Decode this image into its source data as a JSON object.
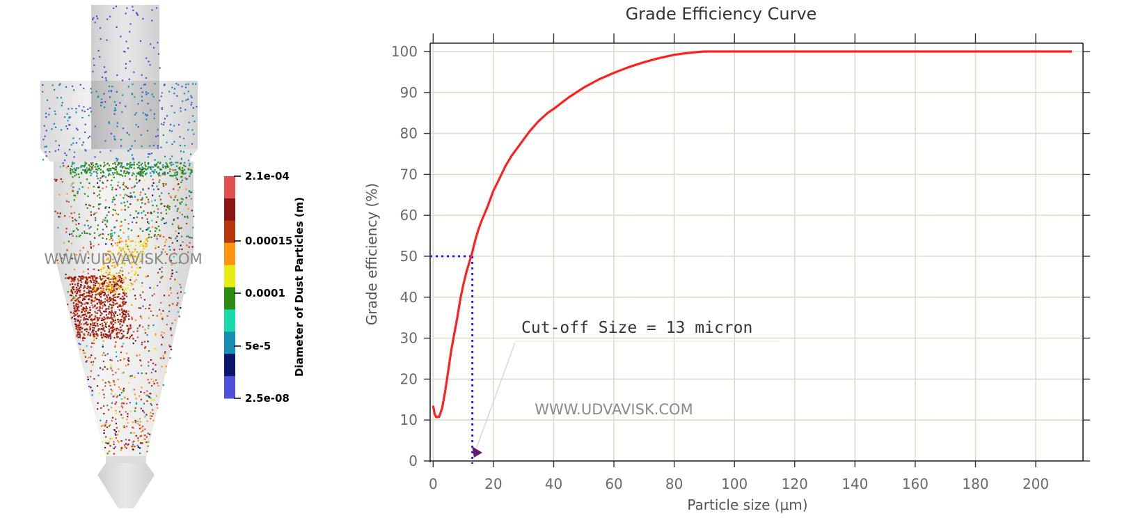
{
  "colorbar": {
    "title": "Diameter of Dust Particles (m)",
    "tick_labels": [
      "2.1e-04",
      "0.00015",
      "0.0001",
      "5e-5",
      "2.5e-08"
    ],
    "colors": [
      "#e0504e",
      "#8b1414",
      "#b8360c",
      "#ff9412",
      "#e6ec12",
      "#2b8c14",
      "#16dba8",
      "#1590b2",
      "#0e156e",
      "#5050dc"
    ]
  },
  "watermark": "WWW.UDVAVISK.COM",
  "chart_data": {
    "type": "line",
    "title": "Grade Efficiency Curve",
    "xlabel": "Particle size (μm)",
    "ylabel": "Grade efficiency (%)",
    "xlim": [
      -1,
      212
    ],
    "ylim": [
      0,
      100
    ],
    "xticks": [
      0,
      20,
      40,
      60,
      80,
      100,
      120,
      140,
      160,
      180,
      200
    ],
    "yticks": [
      0,
      10,
      20,
      30,
      40,
      50,
      60,
      70,
      80,
      90,
      100
    ],
    "grid": true,
    "line_color": "#ff2020",
    "series": [
      {
        "x": [
          0,
          0.5,
          1,
          2,
          3,
          4,
          5,
          6,
          7,
          8,
          9,
          10,
          11,
          12,
          13,
          14,
          15,
          16,
          18,
          20,
          22,
          24,
          26,
          28,
          30,
          32,
          35,
          38,
          40,
          45,
          50,
          55,
          60,
          65,
          70,
          75,
          80,
          85,
          88,
          90,
          100,
          120,
          140,
          160,
          180,
          200,
          212
        ],
        "y": [
          13.5,
          11.5,
          10.7,
          10.8,
          13,
          17,
          22,
          27,
          31,
          35,
          39.5,
          43,
          46,
          48.5,
          51,
          54,
          56.5,
          58.5,
          62,
          66,
          69,
          72,
          74.5,
          76.5,
          78.5,
          80.5,
          83,
          85,
          86,
          88.8,
          91.2,
          93.2,
          94.8,
          96.2,
          97.4,
          98.4,
          99.2,
          99.7,
          99.9,
          100,
          100,
          100,
          100,
          100,
          100,
          100,
          100
        ]
      }
    ],
    "cutoff": {
      "x": 13,
      "y": 50,
      "label": "Cut-off Size = 13 micron",
      "guide_color": "#2020ff"
    }
  }
}
